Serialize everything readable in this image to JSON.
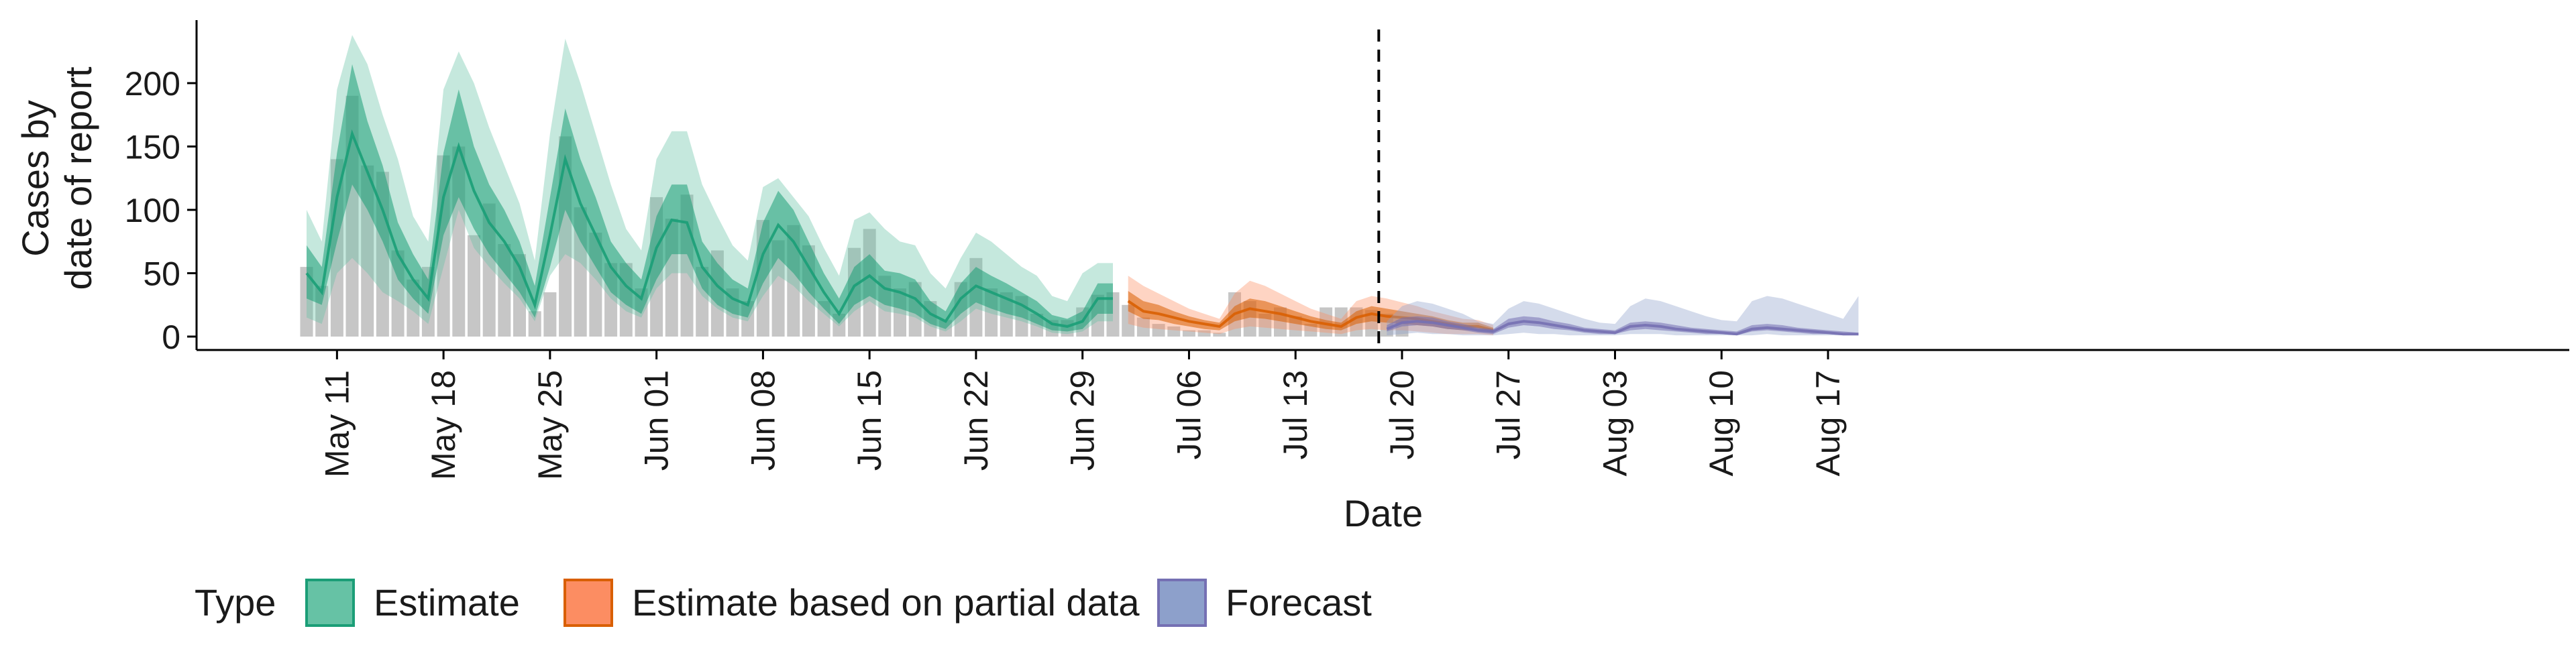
{
  "chart_data": {
    "type": "bar",
    "title": "",
    "xlabel": "Date",
    "ylabel_lines": [
      "Cases by",
      "date of report"
    ],
    "ylim": [
      0,
      245
    ],
    "yticks": [
      0,
      50,
      100,
      150,
      200
    ],
    "grid": false,
    "x_start": "2020-05-09",
    "x_end": "2020-08-17",
    "forecast_cutoff": "2020-07-19",
    "xticks": [
      {
        "date": "2020-05-11",
        "label": "May 11"
      },
      {
        "date": "2020-05-18",
        "label": "May 18"
      },
      {
        "date": "2020-05-25",
        "label": "May 25"
      },
      {
        "date": "2020-06-01",
        "label": "Jun 01"
      },
      {
        "date": "2020-06-08",
        "label": "Jun 08"
      },
      {
        "date": "2020-06-15",
        "label": "Jun 15"
      },
      {
        "date": "2020-06-22",
        "label": "Jun 22"
      },
      {
        "date": "2020-06-29",
        "label": "Jun 29"
      },
      {
        "date": "2020-07-06",
        "label": "Jul 06"
      },
      {
        "date": "2020-07-13",
        "label": "Jul 13"
      },
      {
        "date": "2020-07-20",
        "label": "Jul 20"
      },
      {
        "date": "2020-07-27",
        "label": "Jul 27"
      },
      {
        "date": "2020-08-03",
        "label": "Aug 03"
      },
      {
        "date": "2020-08-10",
        "label": "Aug 10"
      },
      {
        "date": "2020-08-17",
        "label": "Aug 17"
      }
    ],
    "observed_cases": [
      55,
      40,
      140,
      190,
      135,
      130,
      68,
      45,
      55,
      143,
      150,
      80,
      105,
      73,
      65,
      20,
      35,
      158,
      102,
      82,
      58,
      58,
      38,
      110,
      93,
      112,
      55,
      68,
      38,
      28,
      92,
      76,
      88,
      72,
      28,
      18,
      70,
      85,
      48,
      38,
      43,
      28,
      13,
      43,
      62,
      38,
      35,
      32,
      18,
      13,
      13,
      23,
      33,
      35,
      25,
      15,
      10,
      8,
      5,
      5,
      3,
      35,
      28,
      18,
      23,
      16,
      10,
      23,
      23,
      23,
      21,
      18,
      13
    ],
    "series": [
      {
        "name": "Estimate",
        "color": "#1B9E77",
        "fill": "#66C2A5",
        "start": "2020-05-09",
        "median": [
          50,
          35,
          110,
          160,
          130,
          100,
          65,
          45,
          30,
          110,
          150,
          115,
          90,
          75,
          55,
          25,
          80,
          140,
          105,
          80,
          55,
          40,
          30,
          70,
          92,
          90,
          55,
          40,
          30,
          25,
          65,
          88,
          75,
          55,
          35,
          18,
          40,
          48,
          38,
          35,
          30,
          18,
          12,
          30,
          40,
          35,
          30,
          25,
          18,
          10,
          8,
          12,
          30,
          30
        ],
        "inner_lo": [
          30,
          25,
          75,
          120,
          100,
          75,
          45,
          30,
          18,
          80,
          110,
          85,
          65,
          50,
          35,
          15,
          55,
          100,
          75,
          55,
          35,
          25,
          18,
          45,
          65,
          65,
          38,
          25,
          18,
          15,
          42,
          62,
          50,
          35,
          22,
          10,
          25,
          32,
          25,
          22,
          18,
          10,
          6,
          18,
          27,
          22,
          18,
          15,
          10,
          5,
          4,
          6,
          18,
          18
        ],
        "inner_hi": [
          72,
          55,
          145,
          215,
          170,
          135,
          90,
          65,
          45,
          145,
          195,
          150,
          120,
          100,
          75,
          40,
          110,
          180,
          140,
          110,
          75,
          58,
          45,
          95,
          120,
          120,
          75,
          58,
          45,
          38,
          90,
          115,
          100,
          75,
          50,
          30,
          55,
          65,
          52,
          50,
          45,
          28,
          20,
          42,
          55,
          48,
          42,
          35,
          28,
          17,
          14,
          20,
          42,
          42
        ],
        "outer_lo": [
          15,
          10,
          50,
          62,
          50,
          35,
          28,
          20,
          10,
          55,
          100,
          70,
          55,
          42,
          30,
          12,
          48,
          65,
          58,
          45,
          30,
          20,
          15,
          38,
          50,
          50,
          32,
          22,
          15,
          12,
          32,
          48,
          40,
          28,
          18,
          8,
          20,
          28,
          20,
          18,
          15,
          8,
          4,
          12,
          22,
          18,
          15,
          12,
          8,
          3,
          2,
          4,
          12,
          12
        ],
        "outer_hi": [
          100,
          75,
          195,
          238,
          215,
          175,
          140,
          95,
          75,
          195,
          225,
          200,
          165,
          135,
          105,
          60,
          160,
          235,
          200,
          160,
          120,
          85,
          68,
          140,
          162,
          162,
          120,
          95,
          72,
          60,
          118,
          125,
          110,
          95,
          70,
          48,
          92,
          98,
          85,
          75,
          72,
          50,
          38,
          62,
          82,
          75,
          65,
          55,
          48,
          32,
          28,
          50,
          58,
          58
        ]
      },
      {
        "name": "Estimate based on partial data",
        "color": "#D95F02",
        "fill": "#FC8D62",
        "start": "2020-07-02",
        "median": [
          28,
          20,
          18,
          15,
          12,
          10,
          8,
          18,
          22,
          20,
          18,
          15,
          12,
          10,
          8,
          15,
          18,
          16,
          15,
          14,
          12,
          10,
          8,
          8,
          5
        ],
        "inner_lo": [
          20,
          14,
          13,
          10,
          8,
          6,
          5,
          12,
          15,
          14,
          12,
          10,
          8,
          6,
          5,
          10,
          12,
          11,
          10,
          9,
          8,
          6,
          5,
          5,
          3
        ],
        "inner_hi": [
          36,
          28,
          25,
          20,
          16,
          13,
          11,
          24,
          30,
          28,
          24,
          20,
          16,
          13,
          11,
          20,
          24,
          22,
          20,
          18,
          16,
          13,
          11,
          11,
          7
        ],
        "outer_lo": [
          10,
          7,
          6,
          5,
          4,
          3,
          2,
          6,
          8,
          7,
          6,
          5,
          4,
          3,
          2,
          5,
          6,
          5,
          5,
          4,
          3,
          2,
          2,
          2,
          1
        ],
        "outer_hi": [
          48,
          40,
          34,
          28,
          22,
          18,
          14,
          34,
          44,
          40,
          34,
          28,
          22,
          18,
          14,
          28,
          32,
          30,
          27,
          24,
          20,
          17,
          14,
          13,
          9
        ]
      },
      {
        "name": "Forecast",
        "color": "#7570B3",
        "fill": "#8DA0CB",
        "start": "2020-07-19",
        "median": [
          6,
          11,
          12,
          11,
          9,
          7,
          5,
          4,
          10,
          12,
          11,
          9,
          7,
          5,
          4,
          3,
          8,
          9,
          8,
          6,
          5,
          4,
          3,
          2,
          6,
          7,
          6,
          5,
          4,
          3,
          2,
          2
        ],
        "inner_lo": [
          4,
          8,
          9,
          8,
          6,
          5,
          3,
          2,
          7,
          9,
          8,
          6,
          5,
          3,
          2,
          2,
          5,
          6,
          5,
          4,
          3,
          2,
          2,
          1,
          4,
          5,
          4,
          3,
          2,
          2,
          1,
          1
        ],
        "inner_hi": [
          9,
          15,
          16,
          15,
          12,
          10,
          7,
          6,
          14,
          16,
          15,
          12,
          10,
          7,
          6,
          5,
          11,
          12,
          11,
          9,
          7,
          6,
          5,
          4,
          9,
          10,
          9,
          7,
          6,
          5,
          4,
          3
        ],
        "outer_lo": [
          1,
          2,
          3,
          2,
          2,
          1,
          1,
          1,
          2,
          3,
          2,
          2,
          1,
          1,
          1,
          1,
          2,
          2,
          2,
          1,
          1,
          1,
          1,
          1,
          1,
          2,
          1,
          1,
          1,
          1,
          1,
          1
        ],
        "outer_hi": [
          12,
          24,
          28,
          26,
          22,
          18,
          12,
          10,
          22,
          28,
          26,
          22,
          18,
          14,
          11,
          10,
          24,
          30,
          28,
          24,
          20,
          16,
          13,
          12,
          28,
          32,
          30,
          26,
          22,
          18,
          14,
          32
        ]
      }
    ],
    "legend": {
      "position": "bottom-left",
      "title": "Type",
      "items": [
        {
          "label": "Estimate",
          "color": "#66C2A5",
          "border": "#1B9E77"
        },
        {
          "label": "Estimate based on partial data",
          "color": "#FC8D62",
          "border": "#D95F02"
        },
        {
          "label": "Forecast",
          "color": "#8DA0CB",
          "border": "#7570B3"
        }
      ]
    }
  }
}
